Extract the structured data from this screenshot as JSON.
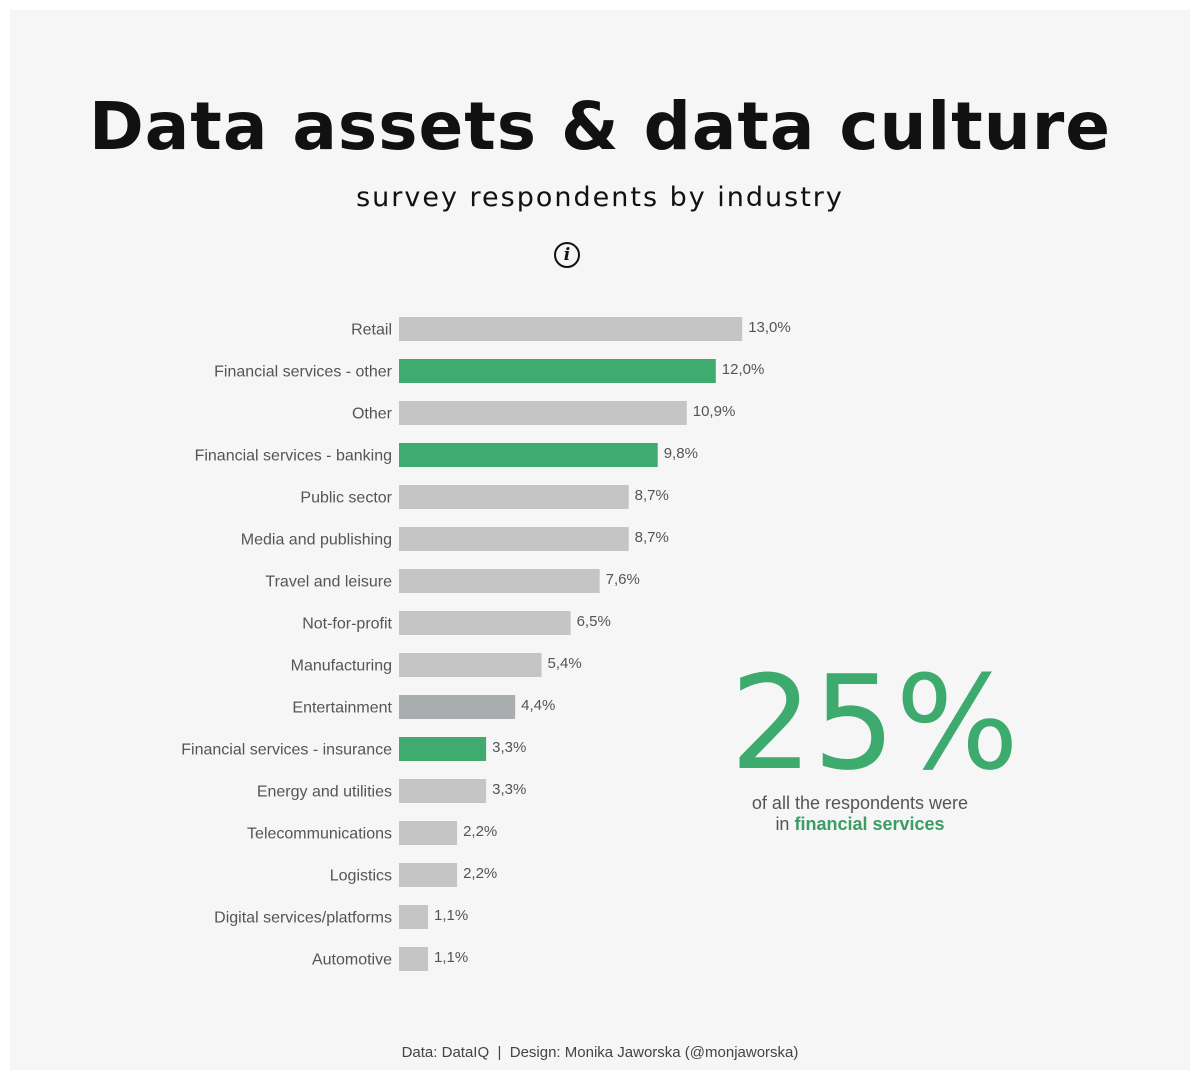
{
  "title": "Data assets & data culture",
  "subtitle": "survey respondents by industry",
  "info_icon": "info-icon",
  "callout": {
    "big_value": "25%",
    "line1": "of all the respondents were",
    "line2_prefix": "in",
    "line2_highlight": "financial services"
  },
  "footer": {
    "data_source": "Data: DataIQ",
    "separator": "|",
    "design": "Design: Monika Jaworska (@monjaworska)"
  },
  "colors": {
    "default_bar": "#c4c5c4",
    "financial_bar": "#3fab6e",
    "entertainment_bar": "#aaadad",
    "highlight_text": "#3a9d63"
  },
  "chart_data": {
    "type": "bar",
    "orientation": "horizontal",
    "categories": [
      "Retail",
      "Financial services - other",
      "Other",
      "Financial services - banking",
      "Public sector",
      "Media and publishing",
      "Travel and leisure",
      "Not-for-profit",
      "Manufacturing",
      "Entertainment",
      "Financial services - insurance",
      "Energy and utilities",
      "Telecommunications",
      "Logistics",
      "Digital services/platforms",
      "Automotive"
    ],
    "values": [
      13.0,
      12.0,
      10.9,
      9.8,
      8.7,
      8.7,
      7.6,
      6.5,
      5.4,
      4.4,
      3.3,
      3.3,
      2.2,
      2.2,
      1.1,
      1.1
    ],
    "value_labels": [
      "13,0%",
      "12,0%",
      "10,9%",
      "9,8%",
      "8,7%",
      "8,7%",
      "7,6%",
      "6,5%",
      "5,4%",
      "4,4%",
      "3,3%",
      "3,3%",
      "2,2%",
      "2,2%",
      "1,1%",
      "1,1%"
    ],
    "groups": [
      "default",
      "financial",
      "default",
      "financial",
      "default",
      "default",
      "default",
      "default",
      "default",
      "entertainment",
      "financial",
      "default",
      "default",
      "default",
      "default",
      "default"
    ],
    "unit": "%",
    "grid": false,
    "legend": "none"
  }
}
